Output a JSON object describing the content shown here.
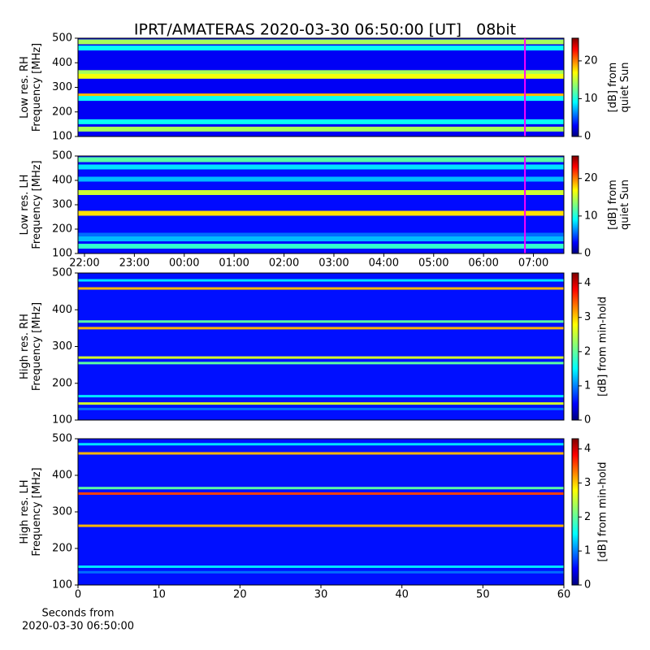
{
  "chart_data": [
    {
      "type": "heatmap",
      "title": "IPRT/AMATERAS 2020-03-30 06:50:00 [UT]   08bit",
      "ylabel": [
        "Low res. RH",
        "Frequency [MHz]"
      ],
      "ylim": [
        100,
        500
      ],
      "yticks": [
        100,
        200,
        300,
        400,
        500
      ],
      "xlim": [
        21.87,
        31.61
      ],
      "marker": 30.83,
      "marker_color": "#ff00ff",
      "colorbar": {
        "label": [
          "[dB] from",
          "quiet Sun"
        ],
        "lim": [
          0,
          26
        ],
        "ticks": [
          0,
          10,
          20
        ]
      },
      "background": 3,
      "bands": {
        "freq": [
          485,
          460,
          360,
          345,
          265,
          255,
          160,
          130
        ],
        "values": [
          14,
          10,
          14,
          16,
          18,
          10,
          10,
          14
        ]
      }
    },
    {
      "type": "heatmap",
      "ylabel": [
        "Low res. LH",
        "Frequency [MHz]"
      ],
      "ylim": [
        100,
        500
      ],
      "yticks": [
        100,
        200,
        300,
        400,
        500
      ],
      "xlim": [
        21.87,
        31.61
      ],
      "marker": 30.83,
      "marker_color": "#ff00ff",
      "xticks": [
        {
          "value": 22,
          "label": "22:00"
        },
        {
          "value": 23,
          "label": "23:00"
        },
        {
          "value": 24,
          "label": "00:00"
        },
        {
          "value": 25,
          "label": "01:00"
        },
        {
          "value": 26,
          "label": "02:00"
        },
        {
          "value": 27,
          "label": "03:00"
        },
        {
          "value": 28,
          "label": "04:00"
        },
        {
          "value": 29,
          "label": "05:00"
        },
        {
          "value": 30,
          "label": "06:00"
        },
        {
          "value": 31,
          "label": "07:00"
        }
      ],
      "colorbar": {
        "label": [
          "[dB] from",
          "quiet Sun"
        ],
        "lim": [
          0,
          26
        ],
        "ticks": [
          0,
          10,
          20
        ]
      },
      "background": 3.5,
      "bands": {
        "freq": [
          485,
          455,
          405,
          350,
          265,
          175,
          160,
          130
        ],
        "values": [
          12,
          9,
          8,
          15,
          17,
          6,
          8,
          11
        ]
      }
    },
    {
      "type": "heatmap",
      "ylabel": [
        "High res. RH",
        "Frequency [MHz]"
      ],
      "ylim": [
        100,
        500
      ],
      "yticks": [
        100,
        200,
        300,
        400,
        500
      ],
      "xlim": [
        0,
        60
      ],
      "colorbar": {
        "label": [
          "[dB] from min-hold"
        ],
        "lim": [
          0,
          4.3
        ],
        "ticks": [
          0,
          1,
          2,
          3,
          4
        ]
      },
      "background": 0.6,
      "bands": {
        "freq": [
          480,
          458,
          368,
          350,
          270,
          255,
          165,
          145,
          130
        ],
        "values": [
          1.5,
          3,
          2,
          3,
          2.5,
          2,
          1.5,
          2.5,
          1
        ]
      }
    },
    {
      "type": "heatmap",
      "ylabel": [
        "High res. LH",
        "Frequency [MHz]"
      ],
      "ylim": [
        100,
        500
      ],
      "yticks": [
        100,
        200,
        300,
        400,
        500
      ],
      "xlim": [
        0,
        60
      ],
      "xticks": [
        0,
        10,
        20,
        30,
        40,
        50,
        60
      ],
      "xlabel": [
        "Seconds from",
        "2020-03-30 06:50:00"
      ],
      "colorbar": {
        "label": [
          "[dB] from min-hold"
        ],
        "lim": [
          0,
          4.3
        ],
        "ticks": [
          0,
          1,
          2,
          3,
          4
        ]
      },
      "background": 0.6,
      "bands": {
        "freq": [
          485,
          460,
          365,
          350,
          262,
          150,
          135
        ],
        "values": [
          1.5,
          3,
          2,
          3.5,
          3,
          1.5,
          1
        ]
      }
    }
  ]
}
